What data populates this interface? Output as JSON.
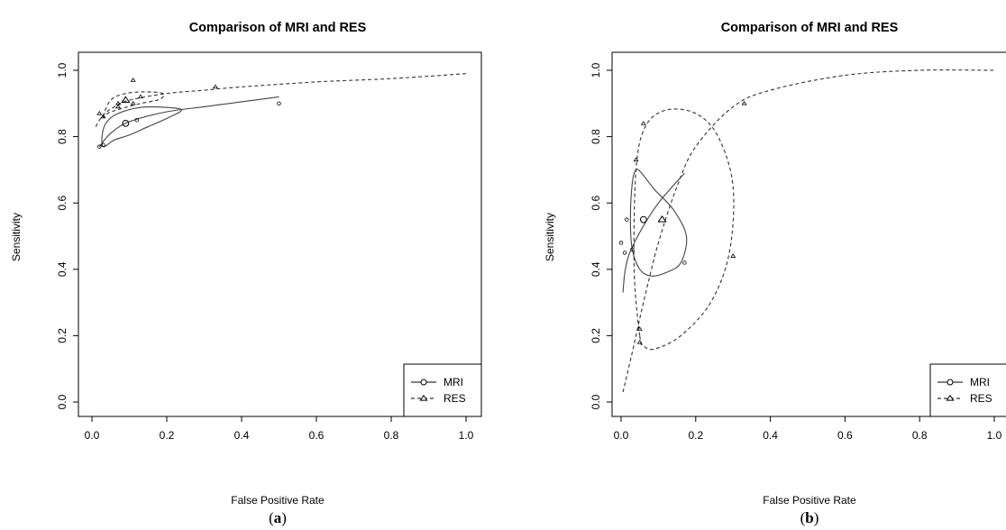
{
  "figure": {
    "captions": [
      {
        "open": "(",
        "letter": "a",
        "close": ")"
      },
      {
        "open": "(",
        "letter": "b",
        "close": ")"
      }
    ]
  },
  "chart_data": [
    {
      "type": "scatter",
      "title": "Comparison of MRI and RES",
      "xlabel": "False Positive Rate",
      "ylabel": "Sensitivity",
      "xlim": [
        0,
        1
      ],
      "ylim": [
        0,
        1
      ],
      "xticks": [
        "0.0",
        "0.2",
        "0.4",
        "0.6",
        "0.8",
        "1.0"
      ],
      "yticks": [
        "0.0",
        "0.2",
        "0.4",
        "0.6",
        "0.8",
        "1.0"
      ],
      "legend_position": "bottom-right",
      "grid": false,
      "legend": [
        {
          "label": "MRI",
          "marker": "circle",
          "line": "solid"
        },
        {
          "label": "RES",
          "marker": "triangle",
          "line": "dashed"
        }
      ],
      "series": [
        {
          "name": "MRI",
          "marker": "circle",
          "points": [
            [
              0.02,
              0.77
            ],
            [
              0.03,
              0.775
            ],
            [
              0.12,
              0.85
            ],
            [
              0.5,
              0.9
            ]
          ],
          "summary_point": [
            0.09,
            0.84
          ],
          "sroc_curve": [
            [
              0.02,
              0.77
            ],
            [
              0.05,
              0.81
            ],
            [
              0.1,
              0.845
            ],
            [
              0.2,
              0.875
            ],
            [
              0.3,
              0.89
            ],
            [
              0.4,
              0.905
            ],
            [
              0.5,
              0.92
            ]
          ],
          "confidence_region": [
            [
              0.03,
              0.77
            ],
            [
              0.06,
              0.79
            ],
            [
              0.1,
              0.805
            ],
            [
              0.15,
              0.83
            ],
            [
              0.2,
              0.855
            ],
            [
              0.24,
              0.88
            ],
            [
              0.2,
              0.888
            ],
            [
              0.13,
              0.888
            ],
            [
              0.07,
              0.87
            ],
            [
              0.04,
              0.845
            ],
            [
              0.028,
              0.81
            ],
            [
              0.03,
              0.77
            ]
          ]
        },
        {
          "name": "RES",
          "marker": "triangle",
          "points": [
            [
              0.02,
              0.87
            ],
            [
              0.03,
              0.86
            ],
            [
              0.07,
              0.9
            ],
            [
              0.07,
              0.89
            ],
            [
              0.11,
              0.97
            ],
            [
              0.11,
              0.9
            ],
            [
              0.13,
              0.92
            ],
            [
              0.33,
              0.95
            ]
          ],
          "summary_point": [
            0.09,
            0.91
          ],
          "sroc_curve": [
            [
              0.01,
              0.83
            ],
            [
              0.03,
              0.865
            ],
            [
              0.06,
              0.89
            ],
            [
              0.1,
              0.91
            ],
            [
              0.2,
              0.93
            ],
            [
              0.3,
              0.94
            ],
            [
              0.4,
              0.95
            ],
            [
              0.6,
              0.965
            ],
            [
              0.8,
              0.975
            ],
            [
              1.0,
              0.99
            ]
          ],
          "confidence_region": [
            [
              0.03,
              0.86
            ],
            [
              0.05,
              0.91
            ],
            [
              0.09,
              0.93
            ],
            [
              0.14,
              0.935
            ],
            [
              0.19,
              0.93
            ],
            [
              0.18,
              0.912
            ],
            [
              0.13,
              0.9
            ],
            [
              0.08,
              0.885
            ],
            [
              0.045,
              0.872
            ],
            [
              0.03,
              0.86
            ]
          ]
        }
      ]
    },
    {
      "type": "scatter",
      "title": "Comparison of MRI and RES",
      "xlabel": "False Positive Rate",
      "ylabel": "Sensitivity",
      "xlim": [
        0,
        1
      ],
      "ylim": [
        0,
        1
      ],
      "xticks": [
        "0.0",
        "0.2",
        "0.4",
        "0.6",
        "0.8",
        "1.0"
      ],
      "yticks": [
        "0.0",
        "0.2",
        "0.4",
        "0.6",
        "0.8",
        "1.0"
      ],
      "legend_position": "bottom-right",
      "grid": false,
      "legend": [
        {
          "label": "MRI",
          "marker": "circle",
          "line": "solid"
        },
        {
          "label": "RES",
          "marker": "triangle",
          "line": "dashed"
        }
      ],
      "series": [
        {
          "name": "MRI",
          "marker": "circle",
          "points": [
            [
              0.0,
              0.48
            ],
            [
              0.01,
              0.45
            ],
            [
              0.015,
              0.55
            ],
            [
              0.03,
              0.46
            ],
            [
              0.17,
              0.42
            ]
          ],
          "summary_point": [
            0.06,
            0.55
          ],
          "sroc_curve": [
            [
              0.005,
              0.33
            ],
            [
              0.01,
              0.39
            ],
            [
              0.02,
              0.44
            ],
            [
              0.04,
              0.49
            ],
            [
              0.07,
              0.55
            ],
            [
              0.1,
              0.6
            ],
            [
              0.13,
              0.64
            ],
            [
              0.17,
              0.69
            ]
          ],
          "confidence_region": [
            [
              0.03,
              0.46
            ],
            [
              0.025,
              0.55
            ],
            [
              0.03,
              0.66
            ],
            [
              0.04,
              0.7
            ],
            [
              0.055,
              0.69
            ],
            [
              0.09,
              0.64
            ],
            [
              0.14,
              0.58
            ],
            [
              0.175,
              0.5
            ],
            [
              0.16,
              0.42
            ],
            [
              0.12,
              0.39
            ],
            [
              0.08,
              0.38
            ],
            [
              0.05,
              0.4
            ],
            [
              0.03,
              0.46
            ]
          ]
        },
        {
          "name": "RES",
          "marker": "triangle",
          "points": [
            [
              0.04,
              0.73
            ],
            [
              0.06,
              0.84
            ],
            [
              0.05,
              0.22
            ],
            [
              0.05,
              0.18
            ],
            [
              0.3,
              0.44
            ],
            [
              0.33,
              0.9
            ]
          ],
          "summary_point": [
            0.11,
            0.55
          ],
          "sroc_curve": [
            [
              0.005,
              0.03
            ],
            [
              0.03,
              0.15
            ],
            [
              0.06,
              0.3
            ],
            [
              0.1,
              0.48
            ],
            [
              0.15,
              0.65
            ],
            [
              0.2,
              0.77
            ],
            [
              0.3,
              0.89
            ],
            [
              0.4,
              0.94
            ],
            [
              0.6,
              0.985
            ],
            [
              0.8,
              1.0
            ],
            [
              1.0,
              1.0
            ]
          ],
          "confidence_region": [
            [
              0.05,
              0.2
            ],
            [
              0.035,
              0.4
            ],
            [
              0.04,
              0.7
            ],
            [
              0.065,
              0.83
            ],
            [
              0.12,
              0.88
            ],
            [
              0.2,
              0.87
            ],
            [
              0.26,
              0.8
            ],
            [
              0.3,
              0.65
            ],
            [
              0.29,
              0.45
            ],
            [
              0.24,
              0.3
            ],
            [
              0.16,
              0.2
            ],
            [
              0.09,
              0.16
            ],
            [
              0.06,
              0.17
            ],
            [
              0.05,
              0.2
            ]
          ]
        }
      ]
    }
  ]
}
